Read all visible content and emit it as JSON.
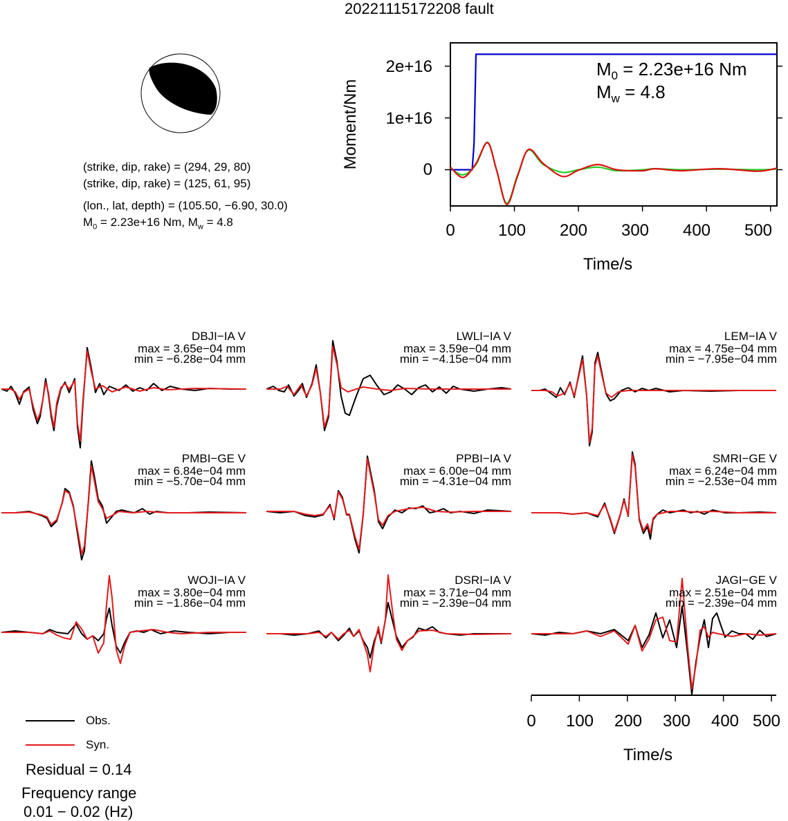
{
  "title": "20221115172208 fault",
  "mechanism": {
    "plane1": "(strike, dip, rake) = (294, 29, 80)",
    "plane2": "(strike, dip, rake) = (125, 61, 95)",
    "location": "(lon., lat, depth) = (105.50, −6.90, 30.0)",
    "moment_prefix": "M",
    "moment_sub": "0",
    "moment_mid": " = 2.23e+16 Nm, M",
    "moment_sub2": "w",
    "moment_suffix": " = 4.8"
  },
  "moment_panel": {
    "ylabel": "Moment/Nm",
    "xlabel": "Time/s",
    "m0_prefix": "M",
    "m0_sub": "0",
    "m0_value": " = 2.23e+16 Nm",
    "mw_prefix": "M",
    "mw_sub": "w",
    "mw_value": " = 4.8",
    "yticks": [
      "2e+16",
      "1e+16",
      "0"
    ],
    "xticks": [
      "0",
      "100",
      "200",
      "300",
      "400",
      "500"
    ]
  },
  "waveform_axis": {
    "xlabel": "Time/s",
    "xticks": [
      "0",
      "100",
      "200",
      "300",
      "400",
      "500"
    ]
  },
  "legend": {
    "obs": "Obs.",
    "syn": "Syn.",
    "obs_color": "#000000",
    "syn_color": "#e41a1c"
  },
  "residual": "Residual = 0.14",
  "frequency_label": "Frequency range",
  "frequency_range": "0.01 − 0.02 (Hz)",
  "stations": [
    {
      "name": "DBJI−IA V",
      "max": "max = 3.65e−04 mm",
      "min": "min = −6.28e−04 mm"
    },
    {
      "name": "LWLI−IA V",
      "max": "max = 3.59e−04 mm",
      "min": "min = −4.15e−04 mm"
    },
    {
      "name": "LEM−IA V",
      "max": "max = 4.75e−04 mm",
      "min": "min = −7.95e−04 mm"
    },
    {
      "name": "PMBI−GE V",
      "max": "max = 6.84e−04 mm",
      "min": "min = −5.70e−04 mm"
    },
    {
      "name": "PPBI−IA V",
      "max": "max = 6.00e−04 mm",
      "min": "min = −4.31e−04 mm"
    },
    {
      "name": "SMRI−GE V",
      "max": "max = 6.24e−04 mm",
      "min": "min = −2.53e−04 mm"
    },
    {
      "name": "WOJI−IA V",
      "max": "max = 3.80e−04 mm",
      "min": "min = −1.86e−04 mm"
    },
    {
      "name": "DSRI−IA V",
      "max": "max = 3.71e−04 mm",
      "min": "min = −2.39e−04 mm"
    },
    {
      "name": "JAGI−GE V",
      "max": "max = 2.51e−04 mm",
      "min": "min = −2.39e−04 mm"
    }
  ],
  "chart_data": {
    "type": "line",
    "title": "20221115172208 fault",
    "xlabel": "Time/s",
    "ylabel": "Moment/Nm",
    "xlim": [
      0,
      510
    ],
    "ylim": [
      -7000000000000000.0,
      2.45e+16
    ],
    "series": [
      {
        "color": "#0000cc",
        "x": [
          0,
          34,
          37,
          40,
          510
        ],
        "y": [
          0,
          0,
          5000000000000000.0,
          2.23e+16,
          2.23e+16
        ]
      },
      {
        "color": "#22cc22",
        "x": [
          0,
          20,
          40,
          58,
          72,
          88,
          105,
          122,
          145,
          175,
          200,
          230,
          260,
          300,
          320,
          360,
          420,
          480,
          510
        ],
        "y": [
          300000000000000.0,
          -1000000000000000.0,
          1000000000000000.0,
          5300000000000000.0,
          0,
          -6500000000000000.0,
          -1000000000000000.0,
          3800000000000000.0,
          1000000000000000.0,
          -500000000000000.0,
          0,
          500000000000000.0,
          -200000000000000.0,
          0,
          200000000000000.0,
          0,
          100000000000000.0,
          0,
          100000000000000.0
        ]
      },
      {
        "color": "#dd1111",
        "x": [
          0,
          20,
          40,
          58,
          72,
          88,
          105,
          122,
          145,
          175,
          200,
          230,
          260,
          300,
          320,
          360,
          420,
          480,
          510
        ],
        "y": [
          500000000000000.0,
          -1500000000000000.0,
          1200000000000000.0,
          5200000000000000.0,
          0,
          -6700000000000000.0,
          -1200000000000000.0,
          3900000000000000.0,
          1200000000000000.0,
          -1300000000000000.0,
          -100000000000000.0,
          1000000000000000.0,
          0,
          -200000000000000.0,
          200000000000000.0,
          -200000000000000.0,
          200000000000000.0,
          -300000000000000.0,
          300000000000000.0
        ]
      }
    ]
  }
}
